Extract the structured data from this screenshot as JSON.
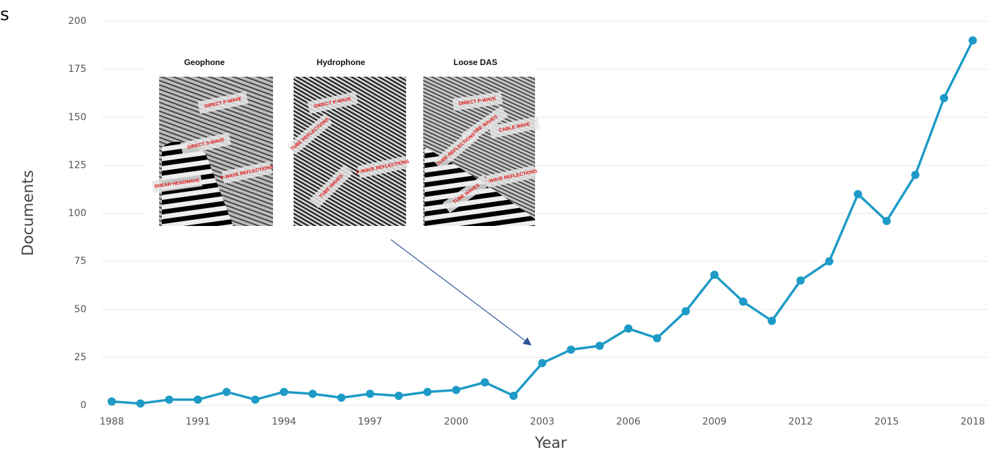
{
  "chart_data": {
    "type": "line",
    "annotation": "s",
    "x_label": "Year",
    "y_label": "Documents",
    "x": [
      1988,
      1989,
      1990,
      1991,
      1992,
      1993,
      1994,
      1995,
      1996,
      1997,
      1998,
      1999,
      2000,
      2001,
      2002,
      2003,
      2004,
      2005,
      2006,
      2007,
      2008,
      2009,
      2010,
      2011,
      2012,
      2013,
      2014,
      2015,
      2016,
      2017,
      2018
    ],
    "values": [
      2,
      1,
      3,
      3,
      7,
      3,
      7,
      6,
      4,
      6,
      5,
      7,
      8,
      12,
      5,
      22,
      29,
      31,
      40,
      35,
      49,
      68,
      54,
      44,
      65,
      75,
      110,
      96,
      120,
      160,
      190
    ],
    "color": "#1d9ac6",
    "xlim": [
      1987.5,
      2018.5
    ],
    "xticks": [
      1988,
      1991,
      1994,
      1997,
      2000,
      2003,
      2006,
      2009,
      2012,
      2015,
      2018
    ],
    "ylim": [
      0,
      200
    ],
    "yticks": [
      0,
      25,
      50,
      75,
      100,
      125,
      150,
      175,
      200
    ],
    "grid": true,
    "inset": {
      "panels": [
        {
          "title": "Geophone",
          "labels": [
            "DIRECT P-WAVE",
            "DIRECT S-WAVE",
            "P-WAVE REFLECTIONS",
            "SHEAR HEADWAVE"
          ]
        },
        {
          "title": "Hydrophone",
          "labels": [
            "DIRECT P-WAVE",
            "TUBE REFLECTIONS",
            "P-WAVE REFLECTIONS",
            "TUBE WAVES"
          ]
        },
        {
          "title": "Loose DAS",
          "labels": [
            "DIRECT P-WAVE",
            "TUBE WAVES",
            "CABLE WAVE",
            "TUBE REFLECTIONS",
            "P-WAVE REFLECTIONS",
            "TUBE WAVES"
          ]
        }
      ]
    }
  }
}
